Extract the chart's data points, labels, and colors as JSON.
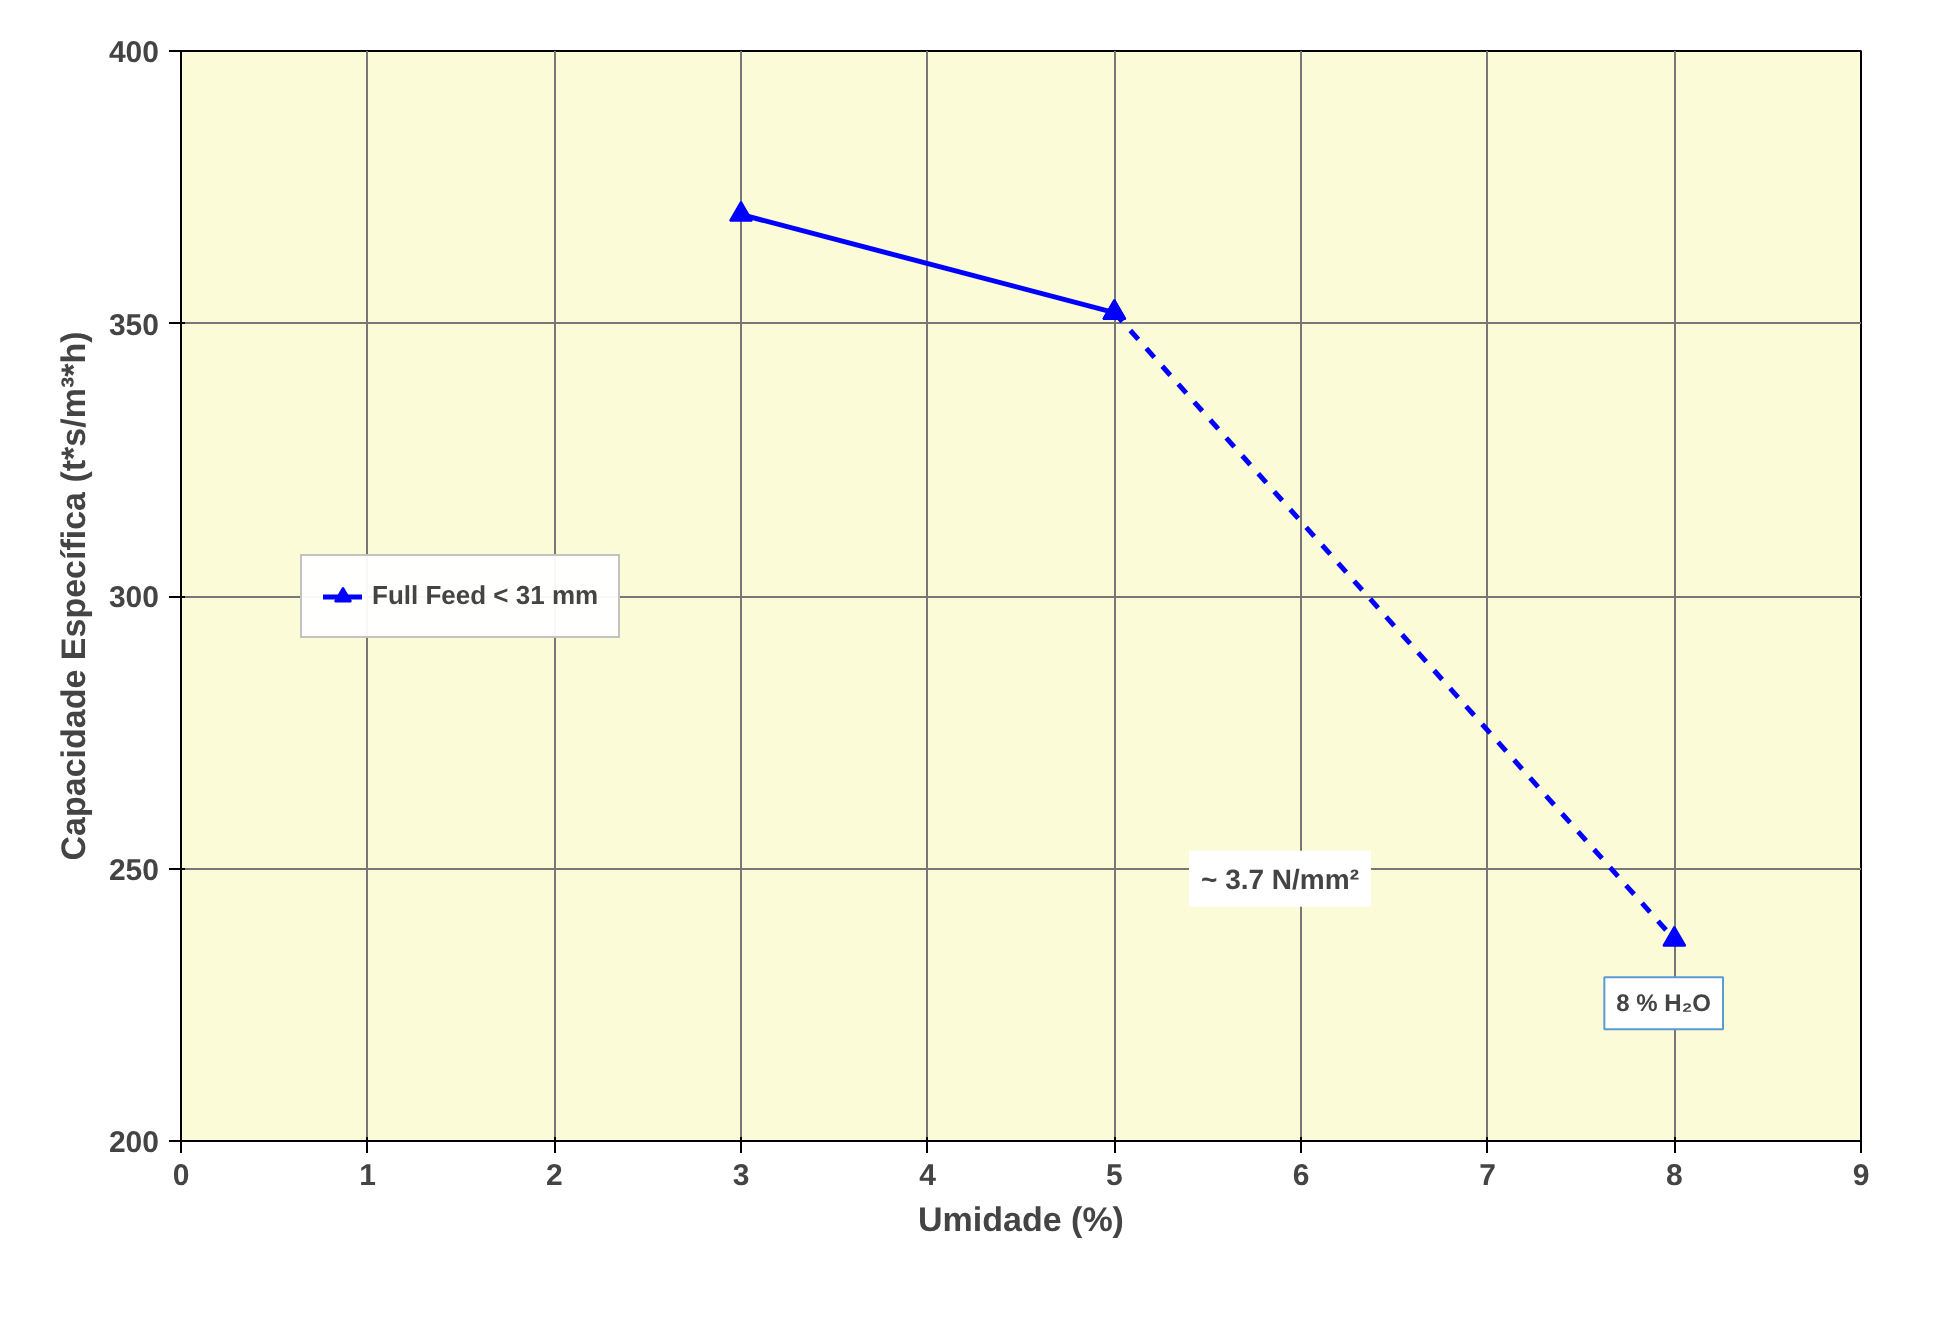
{
  "chart_data": {
    "type": "line",
    "xlabel": "Umidade (%)",
    "ylabel": "Capacidade Específica (t*s/m³*h)",
    "series": [
      {
        "name": "Full Feed < 31 mm",
        "color": "#0000ff",
        "x": [
          3,
          5
        ],
        "values": [
          370,
          352
        ],
        "line_style": "solid"
      },
      {
        "color": "#0000ff",
        "x": [
          5,
          8
        ],
        "values": [
          352,
          237
        ],
        "line_style": "dashed"
      }
    ],
    "xlim": [
      0,
      9
    ],
    "xticks": [
      0,
      1,
      2,
      3,
      4,
      5,
      6,
      7,
      8,
      9
    ],
    "ylim": [
      200,
      400
    ],
    "yticks": [
      200,
      250,
      300,
      350,
      400
    ],
    "grid": true,
    "legend": "left",
    "marker": "triangle",
    "annotations": [
      "~ 3.7 N/mm²",
      {
        "text": "8 % H₂O",
        "x": 8,
        "y": 237
      }
    ]
  }
}
